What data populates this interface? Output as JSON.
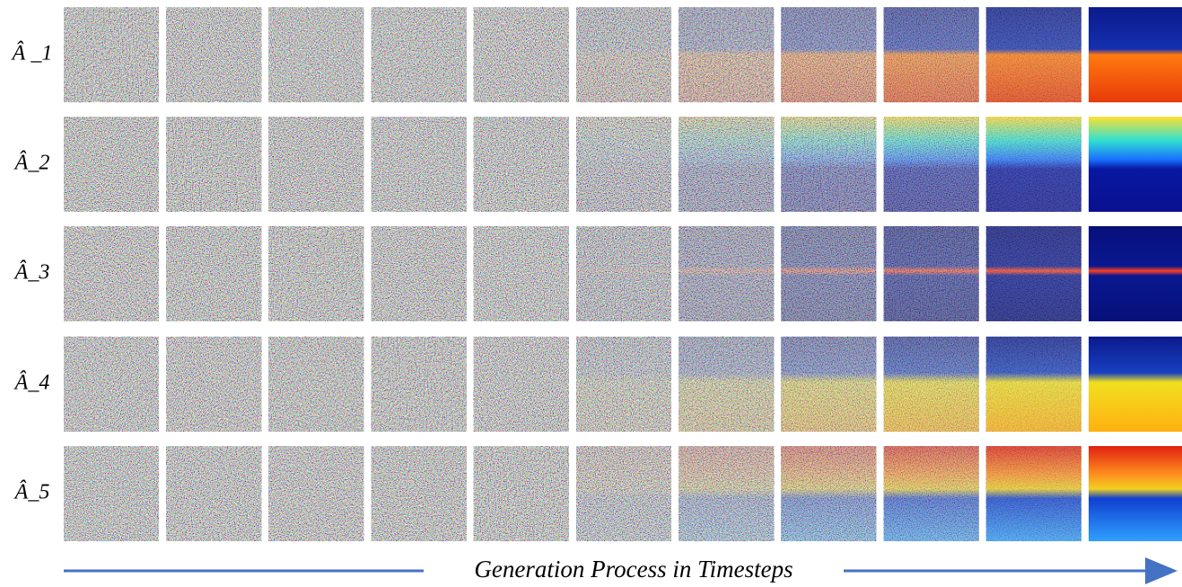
{
  "row_labels": [
    "Â _1",
    "Â_2",
    "Â_3",
    "Â_4",
    "Â_5"
  ],
  "axis_label": "Generation Process in Timesteps"
}
